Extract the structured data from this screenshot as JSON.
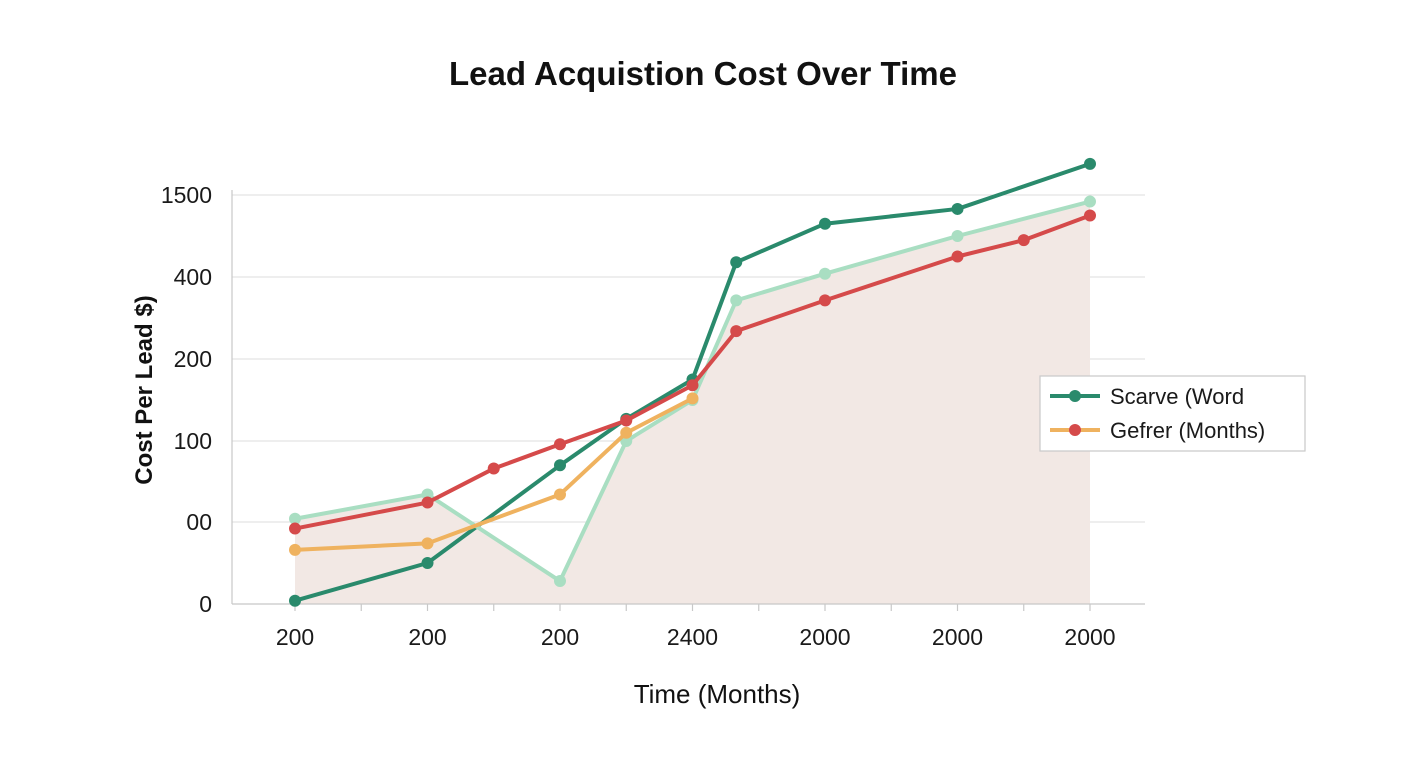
{
  "chart_data": {
    "type": "line",
    "title": "Lead Acquistion Cost Over Time",
    "xlabel": "Time (Months)",
    "ylabel": "Cost Per Lead $)",
    "x_ticks": [
      "200",
      "200",
      "200",
      "2400",
      "2000",
      "2000",
      "2000"
    ],
    "y_ticks": [
      "0",
      "00",
      "100",
      "200",
      "400",
      "1500"
    ],
    "grid": true,
    "legend_position": "right",
    "legend": [
      {
        "label": "Scarve (Word",
        "line_color": "#2a8a6c",
        "marker_color": "#2a8a6c"
      },
      {
        "label": "Gefrer (Months)",
        "line_color": "#efb25f",
        "marker_color": "#d54a4a"
      }
    ],
    "series": [
      {
        "color": "#2a8a6c",
        "points": [
          [
            1,
            2
          ],
          [
            2,
            25
          ],
          [
            3,
            85
          ],
          [
            3.5,
            127
          ],
          [
            4,
            175
          ],
          [
            4.33,
            418
          ],
          [
            5,
            465
          ],
          [
            6,
            483
          ],
          [
            7,
            538
          ]
        ]
      },
      {
        "color": "#a9dec2",
        "area": true,
        "area_color": "#f2e8e4",
        "points": [
          [
            1,
            52
          ],
          [
            2,
            67
          ],
          [
            3,
            14
          ],
          [
            3.5,
            100
          ],
          [
            4,
            150
          ],
          [
            4.33,
            343
          ],
          [
            5,
            404
          ],
          [
            6,
            450
          ],
          [
            7,
            492
          ]
        ]
      },
      {
        "color": "#d54a4a",
        "points": [
          [
            1,
            46
          ],
          [
            2,
            62
          ],
          [
            2.5,
            83
          ],
          [
            3,
            98
          ],
          [
            3.5,
            125
          ],
          [
            4,
            168
          ],
          [
            4.33,
            268
          ],
          [
            5,
            343
          ],
          [
            6,
            425
          ],
          [
            6.5,
            445
          ],
          [
            7,
            475
          ]
        ]
      },
      {
        "color": "#efb25f",
        "points": [
          [
            1,
            33
          ],
          [
            2,
            37
          ],
          [
            3,
            67
          ],
          [
            3.5,
            110
          ],
          [
            4,
            152
          ]
        ]
      }
    ]
  }
}
